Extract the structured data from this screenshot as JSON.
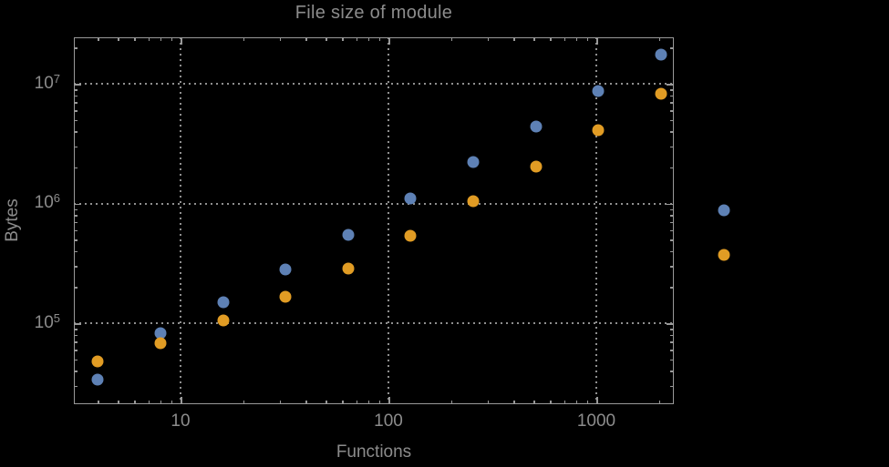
{
  "chart_data": {
    "type": "scatter",
    "title": "File size of module",
    "xlabel": "Functions",
    "ylabel": "Bytes",
    "x_scale": "log",
    "y_scale": "log",
    "grid": "dotted gridlines at major ticks, framed plot with inward log minor ticks on all four edges",
    "legend_position": "none",
    "xlim": [
      3.1,
      2360
    ],
    "ylim": [
      21000,
      24000000
    ],
    "x_tick_labels": [
      "10",
      "100",
      "1000"
    ],
    "x_tick_values": [
      10,
      100,
      1000
    ],
    "y_tick_labels": [
      {
        "base": "10",
        "exp": "7"
      },
      {
        "base": "10",
        "exp": "6"
      },
      {
        "base": "10",
        "exp": "5"
      }
    ],
    "y_tick_values": [
      10000000,
      1000000,
      100000
    ],
    "x": [
      4,
      8,
      16,
      32,
      64,
      128,
      256,
      512,
      1024,
      2048,
      4096
    ],
    "series": [
      {
        "name": "blue-series",
        "color": "#5e81b5",
        "values": [
          34000,
          82000,
          150000,
          280000,
          550000,
          1100000,
          2200000,
          4400000,
          8700000,
          17500000,
          870000
        ]
      },
      {
        "name": "orange-series",
        "color": "#e19c24",
        "values": [
          48000,
          68000,
          105000,
          165000,
          285000,
          540000,
          1050000,
          2050000,
          4100000,
          8300000,
          370000
        ]
      }
    ]
  },
  "colors": {
    "background": "#000000",
    "text": "#8c8c8c",
    "frame": "#999999",
    "grid": "#8f8f8f"
  }
}
